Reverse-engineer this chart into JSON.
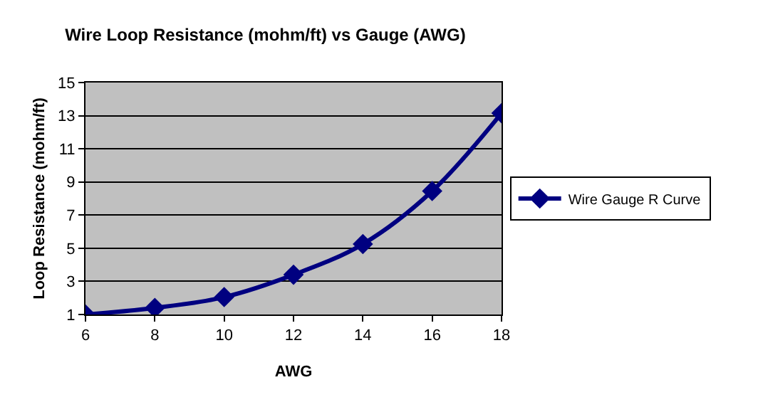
{
  "chart_data": {
    "type": "line",
    "title": "Wire Loop Resistance (mohm/ft) vs Gauge (AWG)",
    "xlabel": "AWG",
    "ylabel": "Loop Resistance (mohm/ft)",
    "x": [
      6,
      8,
      10,
      12,
      14,
      16,
      18
    ],
    "series": [
      {
        "name": "Wire Gauge R Curve",
        "color": "#000080",
        "values": [
          1.0,
          1.4,
          2.05,
          3.4,
          5.25,
          8.45,
          13.15
        ]
      }
    ],
    "xlim": [
      6,
      18
    ],
    "xticks": [
      6,
      8,
      10,
      12,
      14,
      16,
      18
    ],
    "ylim": [
      1,
      15
    ],
    "yticks": [
      1,
      3,
      5,
      7,
      9,
      11,
      13,
      15
    ],
    "grid": "y",
    "legend": "right",
    "marker": "diamond",
    "line_style": "solid"
  }
}
